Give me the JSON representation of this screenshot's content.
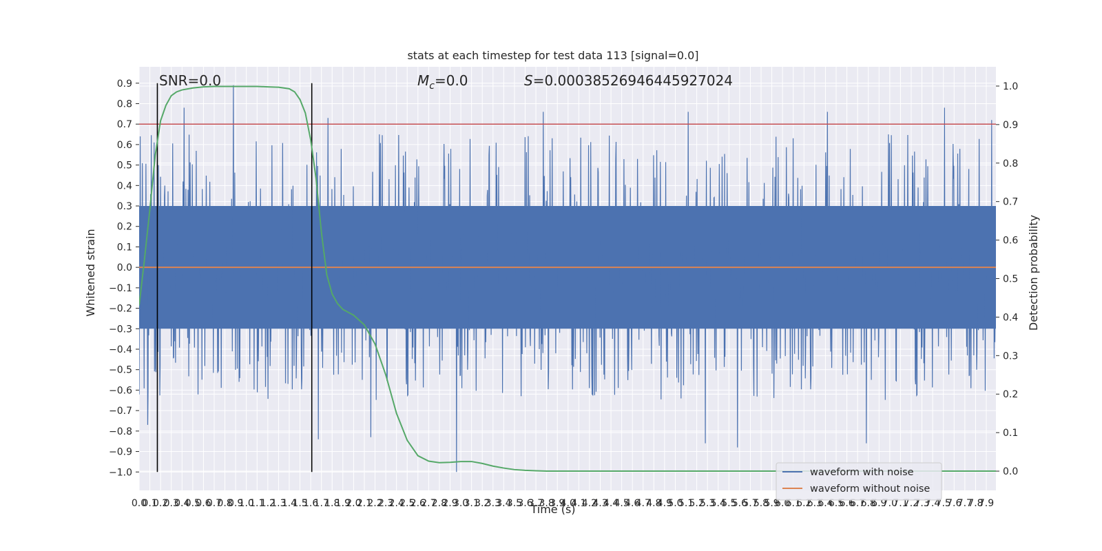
{
  "chart_data": {
    "type": "line",
    "title": "stats at each timestep for test data 113 [signal=0.0]",
    "xlabel": "Time (s)",
    "ylabel_left": "Whitened strain",
    "ylabel_right": "Detection probability",
    "xlim": [
      0.0,
      7.99
    ],
    "ylim_left": [
      -1.09,
      0.98
    ],
    "ylim_right": [
      -0.05,
      1.05
    ],
    "grid": true,
    "legend_placement": "lower-right",
    "x_tick_labels": [
      "0.0",
      "0.1",
      "0.2",
      "0.3",
      "0.4",
      "0.5",
      "0.6",
      "0.7",
      "0.8",
      "0.9",
      "1.0",
      "1.1",
      "1.2",
      "1.3",
      "1.4",
      "1.5",
      "1.6",
      "1.7",
      "1.8",
      "1.9",
      "2.0",
      "2.1",
      "2.2",
      "2.3",
      "2.4",
      "2.5",
      "2.6",
      "2.7",
      "2.8",
      "2.9",
      "3.0",
      "3.1",
      "3.2",
      "3.3",
      "3.4",
      "3.5",
      "3.6",
      "3.7",
      "3.8",
      "3.9",
      "4.0",
      "4.1",
      "4.2",
      "4.3",
      "4.4",
      "4.5",
      "4.6",
      "4.7",
      "4.8",
      "4.9",
      "5.0",
      "5.1",
      "5.2",
      "5.3",
      "5.4",
      "5.5",
      "5.6",
      "5.7",
      "5.8",
      "5.9",
      "6.0",
      "6.1",
      "6.2",
      "6.3",
      "6.4",
      "6.5",
      "6.6",
      "6.7",
      "6.8",
      "6.9",
      "7.0",
      "7.1",
      "7.2",
      "7.3",
      "7.4",
      "7.5",
      "7.6",
      "7.7",
      "7.8",
      "7.9"
    ],
    "y_tick_labels_left": [
      "0.9",
      "0.8",
      "0.7",
      "0.6",
      "0.5",
      "0.4",
      "0.3",
      "0.2",
      "0.1",
      "0.0",
      "−0.1",
      "−0.2",
      "−0.3",
      "−0.4",
      "−0.5",
      "−0.6",
      "−0.7",
      "−0.8",
      "−0.9",
      "−1.0"
    ],
    "y_tick_labels_right": [
      "1.0",
      "0.9",
      "0.8",
      "0.7",
      "0.6",
      "0.5",
      "0.4",
      "0.3",
      "0.2",
      "0.1",
      "0.0"
    ],
    "series": [
      {
        "name": "waveform with noise",
        "color": "#4c72b0",
        "description_values": "dense noise, amplitude roughly within ±0.3 continuously, spikes up to 0.89 and down to −1.0",
        "peaks": [
          {
            "x": 0.14,
            "y": 0.61
          },
          {
            "x": 0.42,
            "y": 0.78
          },
          {
            "x": 0.88,
            "y": 0.89
          },
          {
            "x": 1.76,
            "y": 0.73
          },
          {
            "x": 3.77,
            "y": 0.76
          },
          {
            "x": 5.12,
            "y": 0.76
          },
          {
            "x": 6.42,
            "y": 0.76
          },
          {
            "x": 7.51,
            "y": 0.78
          },
          {
            "x": 7.95,
            "y": 0.72
          }
        ],
        "troughs": [
          {
            "x": 0.08,
            "y": -0.77
          },
          {
            "x": 1.67,
            "y": -0.84
          },
          {
            "x": 2.16,
            "y": -0.83
          },
          {
            "x": 2.96,
            "y": -1.0
          },
          {
            "x": 5.28,
            "y": -0.86
          },
          {
            "x": 5.58,
            "y": -0.88
          },
          {
            "x": 6.78,
            "y": -0.86
          }
        ]
      },
      {
        "name": "waveform without noise",
        "color": "#dd8452",
        "x": [
          0.0,
          7.99
        ],
        "y": [
          0.0,
          0.0
        ]
      },
      {
        "name": "detection probability",
        "axis": "right",
        "color": "#55a868",
        "x": [
          0.0,
          0.05,
          0.1,
          0.15,
          0.2,
          0.25,
          0.3,
          0.35,
          0.4,
          0.5,
          0.6,
          0.7,
          0.8,
          0.9,
          1.0,
          1.1,
          1.2,
          1.3,
          1.4,
          1.45,
          1.5,
          1.55,
          1.6,
          1.65,
          1.7,
          1.75,
          1.8,
          1.85,
          1.9,
          2.0,
          2.1,
          2.2,
          2.3,
          2.4,
          2.5,
          2.6,
          2.7,
          2.8,
          2.9,
          3.0,
          3.1,
          3.2,
          3.3,
          3.4,
          3.5,
          3.6,
          3.7,
          3.8,
          4.0,
          4.5,
          5.0,
          6.0,
          7.0,
          7.99
        ],
        "y": [
          0.43,
          0.55,
          0.68,
          0.82,
          0.91,
          0.95,
          0.975,
          0.985,
          0.99,
          0.995,
          0.998,
          0.999,
          0.999,
          0.999,
          0.999,
          0.999,
          0.998,
          0.997,
          0.993,
          0.985,
          0.965,
          0.93,
          0.86,
          0.76,
          0.62,
          0.51,
          0.46,
          0.435,
          0.42,
          0.405,
          0.38,
          0.33,
          0.25,
          0.15,
          0.08,
          0.04,
          0.026,
          0.022,
          0.023,
          0.025,
          0.025,
          0.02,
          0.013,
          0.008,
          0.004,
          0.002,
          0.001,
          0.0,
          0.0,
          0.0,
          0.0,
          0.0,
          0.0,
          0.0
        ]
      }
    ],
    "hlines": [
      {
        "y": 0.7,
        "axis": "left",
        "color": "#c44e52"
      }
    ],
    "vlines": [
      {
        "x": 0.17,
        "ymin": -1.0,
        "ymax": 0.9,
        "color": "#000000"
      },
      {
        "x": 1.61,
        "ymin": -1.0,
        "ymax": 0.9,
        "color": "#000000"
      }
    ],
    "annotations": {
      "snr": "SNR=0.0",
      "mc_symbol": "M",
      "mc_sub": "c",
      "mc_value": "=0.0",
      "s_symbol": "S",
      "s_value": "=0.00038526946445927024"
    }
  }
}
